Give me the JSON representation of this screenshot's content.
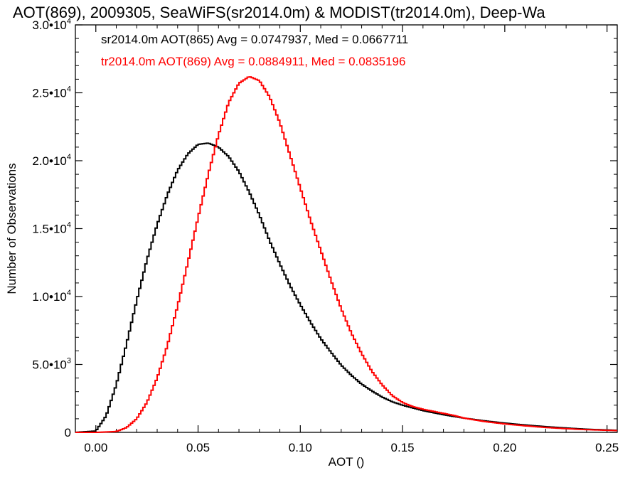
{
  "chart_data": {
    "type": "line",
    "title": "AOT(869), 2009305, SeaWiFS(sr2014.0m) & MODIST(tr2014.0m), Deep-Wa",
    "xlabel": "AOT ()",
    "ylabel": "Number of Observations",
    "xlim": [
      -0.01,
      0.255
    ],
    "ylim": [
      0,
      30000
    ],
    "x_ticks": [
      0.0,
      0.05,
      0.1,
      0.15,
      0.2,
      0.25
    ],
    "x_tick_labels": [
      "0.00",
      "0.05",
      "0.10",
      "0.15",
      "0.20",
      "0.25"
    ],
    "y_ticks": [
      0,
      5000,
      10000,
      15000,
      20000,
      25000,
      30000
    ],
    "y_tick_labels": [
      {
        "mantissa": "0",
        "exp": ""
      },
      {
        "mantissa": "5.0•10",
        "exp": "3"
      },
      {
        "mantissa": "1.0•10",
        "exp": "4"
      },
      {
        "mantissa": "1.5•10",
        "exp": "4"
      },
      {
        "mantissa": "2.0•10",
        "exp": "4"
      },
      {
        "mantissa": "2.5•10",
        "exp": "4"
      },
      {
        "mantissa": "3.0•10",
        "exp": "4"
      }
    ],
    "grid": false,
    "legend_position": "top-left",
    "series": [
      {
        "name": "sr2014.0m AOT(865) Avg = 0.0747937, Med = 0.0667711",
        "color": "#000000",
        "x": [
          -0.01,
          0.0,
          0.005,
          0.01,
          0.015,
          0.02,
          0.025,
          0.03,
          0.035,
          0.04,
          0.045,
          0.05,
          0.055,
          0.06,
          0.065,
          0.07,
          0.075,
          0.08,
          0.085,
          0.09,
          0.095,
          0.1,
          0.105,
          0.11,
          0.115,
          0.12,
          0.125,
          0.13,
          0.135,
          0.14,
          0.145,
          0.15,
          0.155,
          0.16,
          0.165,
          0.17,
          0.18,
          0.19,
          0.2,
          0.21,
          0.22,
          0.23,
          0.24,
          0.255
        ],
        "y": [
          0,
          100,
          1200,
          3500,
          6500,
          9700,
          12700,
          15300,
          17500,
          19300,
          20500,
          21200,
          21300,
          21000,
          20300,
          19200,
          17700,
          16000,
          14100,
          12400,
          10800,
          9400,
          8100,
          6900,
          5900,
          4950,
          4200,
          3550,
          3050,
          2600,
          2250,
          2000,
          1800,
          1600,
          1450,
          1300,
          1050,
          850,
          680,
          540,
          420,
          320,
          230,
          150
        ]
      },
      {
        "name": "tr2014.0m AOT(869) Avg = 0.0884911, Med = 0.0835196",
        "color": "#ff0000",
        "x": [
          -0.01,
          0.0,
          0.01,
          0.015,
          0.02,
          0.025,
          0.03,
          0.035,
          0.04,
          0.045,
          0.05,
          0.055,
          0.06,
          0.065,
          0.07,
          0.075,
          0.08,
          0.085,
          0.09,
          0.095,
          0.1,
          0.105,
          0.11,
          0.115,
          0.12,
          0.125,
          0.13,
          0.135,
          0.14,
          0.145,
          0.15,
          0.155,
          0.16,
          0.165,
          0.17,
          0.175,
          0.18,
          0.19,
          0.2,
          0.21,
          0.22,
          0.23,
          0.24,
          0.255
        ],
        "y": [
          0,
          0,
          60,
          350,
          1000,
          2200,
          4000,
          6400,
          9300,
          12500,
          15800,
          19000,
          21900,
          24300,
          25700,
          26200,
          25900,
          24700,
          22800,
          20400,
          18000,
          15600,
          13400,
          11200,
          9100,
          7300,
          5800,
          4500,
          3500,
          2700,
          2200,
          1900,
          1700,
          1550,
          1400,
          1250,
          1050,
          800,
          620,
          480,
          360,
          270,
          200,
          130
        ]
      }
    ]
  }
}
